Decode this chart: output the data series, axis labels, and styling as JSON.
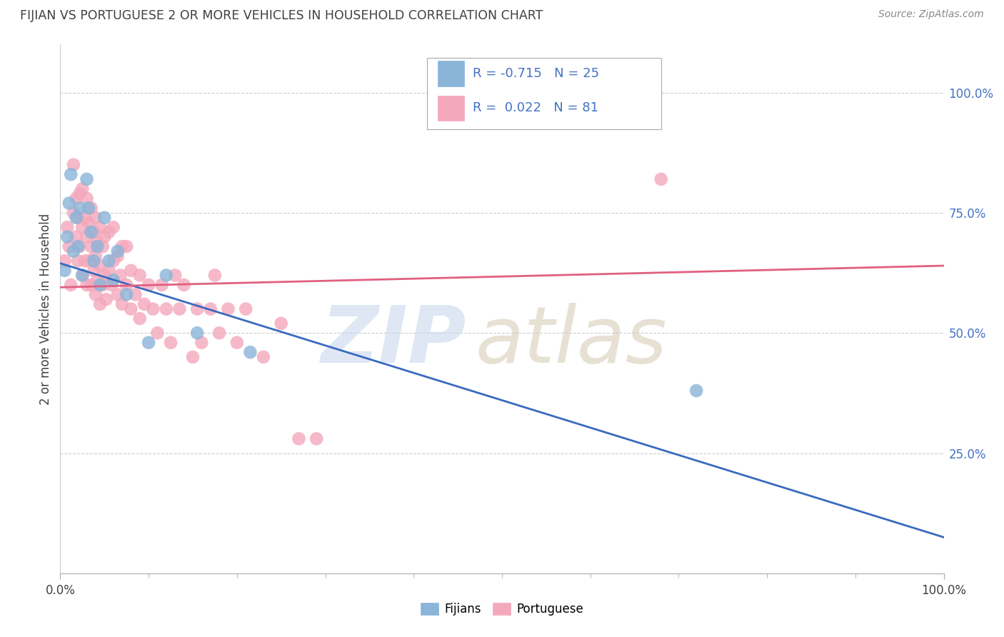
{
  "title": "FIJIAN VS PORTUGUESE 2 OR MORE VEHICLES IN HOUSEHOLD CORRELATION CHART",
  "source": "Source: ZipAtlas.com",
  "ylabel": "2 or more Vehicles in Household",
  "right_yticks": [
    "100.0%",
    "75.0%",
    "50.0%",
    "25.0%"
  ],
  "right_ytick_vals": [
    1.0,
    0.75,
    0.5,
    0.25
  ],
  "fijian_color": "#8ab4d8",
  "portuguese_color": "#f4a8bc",
  "fijian_line_color": "#3a6abf",
  "portuguese_line_color": "#e06080",
  "fijian_R": -0.715,
  "fijian_N": 25,
  "portuguese_R": 0.022,
  "portuguese_N": 81,
  "fijian_line_start_y": 0.645,
  "fijian_line_end_y": 0.075,
  "portuguese_line_start_y": 0.595,
  "portuguese_line_end_y": 0.64,
  "fijian_points": [
    [
      0.005,
      0.63
    ],
    [
      0.008,
      0.7
    ],
    [
      0.01,
      0.77
    ],
    [
      0.012,
      0.83
    ],
    [
      0.015,
      0.67
    ],
    [
      0.018,
      0.74
    ],
    [
      0.02,
      0.68
    ],
    [
      0.022,
      0.76
    ],
    [
      0.025,
      0.62
    ],
    [
      0.03,
      0.82
    ],
    [
      0.032,
      0.76
    ],
    [
      0.035,
      0.71
    ],
    [
      0.038,
      0.65
    ],
    [
      0.042,
      0.68
    ],
    [
      0.045,
      0.6
    ],
    [
      0.05,
      0.74
    ],
    [
      0.055,
      0.65
    ],
    [
      0.06,
      0.61
    ],
    [
      0.065,
      0.67
    ],
    [
      0.075,
      0.58
    ],
    [
      0.1,
      0.48
    ],
    [
      0.12,
      0.62
    ],
    [
      0.155,
      0.5
    ],
    [
      0.215,
      0.46
    ],
    [
      0.72,
      0.38
    ]
  ],
  "portuguese_points": [
    [
      0.005,
      0.65
    ],
    [
      0.008,
      0.72
    ],
    [
      0.01,
      0.68
    ],
    [
      0.012,
      0.6
    ],
    [
      0.015,
      0.75
    ],
    [
      0.015,
      0.85
    ],
    [
      0.018,
      0.7
    ],
    [
      0.018,
      0.78
    ],
    [
      0.02,
      0.65
    ],
    [
      0.02,
      0.74
    ],
    [
      0.022,
      0.68
    ],
    [
      0.022,
      0.79
    ],
    [
      0.025,
      0.62
    ],
    [
      0.025,
      0.72
    ],
    [
      0.025,
      0.8
    ],
    [
      0.028,
      0.65
    ],
    [
      0.028,
      0.74
    ],
    [
      0.03,
      0.6
    ],
    [
      0.03,
      0.7
    ],
    [
      0.03,
      0.78
    ],
    [
      0.032,
      0.65
    ],
    [
      0.032,
      0.73
    ],
    [
      0.035,
      0.6
    ],
    [
      0.035,
      0.68
    ],
    [
      0.035,
      0.76
    ],
    [
      0.038,
      0.63
    ],
    [
      0.038,
      0.71
    ],
    [
      0.04,
      0.58
    ],
    [
      0.04,
      0.66
    ],
    [
      0.04,
      0.74
    ],
    [
      0.042,
      0.61
    ],
    [
      0.042,
      0.69
    ],
    [
      0.045,
      0.56
    ],
    [
      0.045,
      0.64
    ],
    [
      0.045,
      0.72
    ],
    [
      0.048,
      0.6
    ],
    [
      0.048,
      0.68
    ],
    [
      0.05,
      0.62
    ],
    [
      0.05,
      0.7
    ],
    [
      0.052,
      0.57
    ],
    [
      0.055,
      0.63
    ],
    [
      0.055,
      0.71
    ],
    [
      0.058,
      0.6
    ],
    [
      0.06,
      0.65
    ],
    [
      0.06,
      0.72
    ],
    [
      0.065,
      0.58
    ],
    [
      0.065,
      0.66
    ],
    [
      0.068,
      0.62
    ],
    [
      0.07,
      0.56
    ],
    [
      0.07,
      0.68
    ],
    [
      0.075,
      0.6
    ],
    [
      0.075,
      0.68
    ],
    [
      0.08,
      0.55
    ],
    [
      0.08,
      0.63
    ],
    [
      0.085,
      0.58
    ],
    [
      0.09,
      0.53
    ],
    [
      0.09,
      0.62
    ],
    [
      0.095,
      0.56
    ],
    [
      0.1,
      0.6
    ],
    [
      0.105,
      0.55
    ],
    [
      0.11,
      0.5
    ],
    [
      0.115,
      0.6
    ],
    [
      0.12,
      0.55
    ],
    [
      0.125,
      0.48
    ],
    [
      0.13,
      0.62
    ],
    [
      0.135,
      0.55
    ],
    [
      0.14,
      0.6
    ],
    [
      0.15,
      0.45
    ],
    [
      0.155,
      0.55
    ],
    [
      0.16,
      0.48
    ],
    [
      0.17,
      0.55
    ],
    [
      0.175,
      0.62
    ],
    [
      0.18,
      0.5
    ],
    [
      0.19,
      0.55
    ],
    [
      0.2,
      0.48
    ],
    [
      0.21,
      0.55
    ],
    [
      0.23,
      0.45
    ],
    [
      0.25,
      0.52
    ],
    [
      0.27,
      0.28
    ],
    [
      0.29,
      0.28
    ],
    [
      0.68,
      0.82
    ]
  ],
  "xlim": [
    0.0,
    1.0
  ],
  "ylim": [
    0.0,
    1.1
  ],
  "grid_color": "#cccccc",
  "bg_color": "#ffffff",
  "title_color": "#404040",
  "source_color": "#888888",
  "watermark_zip_color": "#c8d8ec",
  "watermark_atlas_color": "#d8cdb8"
}
